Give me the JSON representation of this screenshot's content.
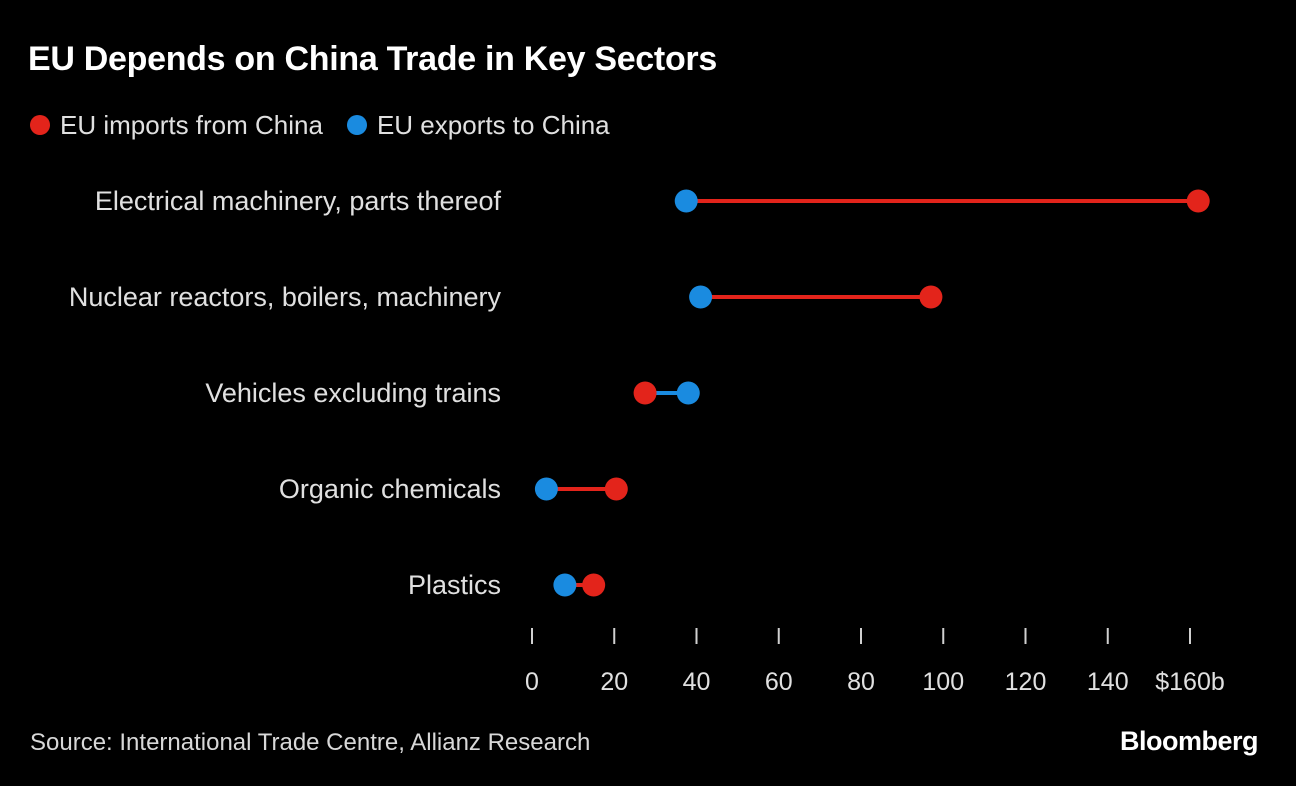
{
  "colors": {
    "background": "#000000",
    "imports": "#e3241b",
    "exports": "#1a8be0",
    "axis": "#d0d0d0",
    "text": "#e0e0e0"
  },
  "chart_data": {
    "type": "dumbbell",
    "title": "EU Depends on China Trade in Key Sectors",
    "legend": [
      {
        "key": "imports",
        "label": "EU imports from China"
      },
      {
        "key": "exports",
        "label": "EU exports to China"
      }
    ],
    "categories": [
      "Electrical machinery, parts thereof",
      "Nuclear reactors, boilers, machinery",
      "Vehicles excluding trains",
      "Organic chemicals",
      "Plastics"
    ],
    "series": [
      {
        "name": "EU imports from China",
        "key": "imports",
        "values": [
          162,
          97,
          27.5,
          20.5,
          15
        ]
      },
      {
        "name": "EU exports to China",
        "key": "exports",
        "values": [
          37.5,
          41,
          38,
          3.5,
          8
        ]
      }
    ],
    "xlim": [
      0,
      160
    ],
    "xticks": [
      0,
      20,
      40,
      60,
      80,
      100,
      120,
      140,
      160
    ],
    "xtick_labels": [
      "0",
      "20",
      "40",
      "60",
      "80",
      "100",
      "120",
      "140",
      "$160b"
    ],
    "xlabel": "",
    "ylabel": "",
    "source": "Source: International Trade Centre, Allianz Research",
    "brand": "Bloomberg"
  }
}
